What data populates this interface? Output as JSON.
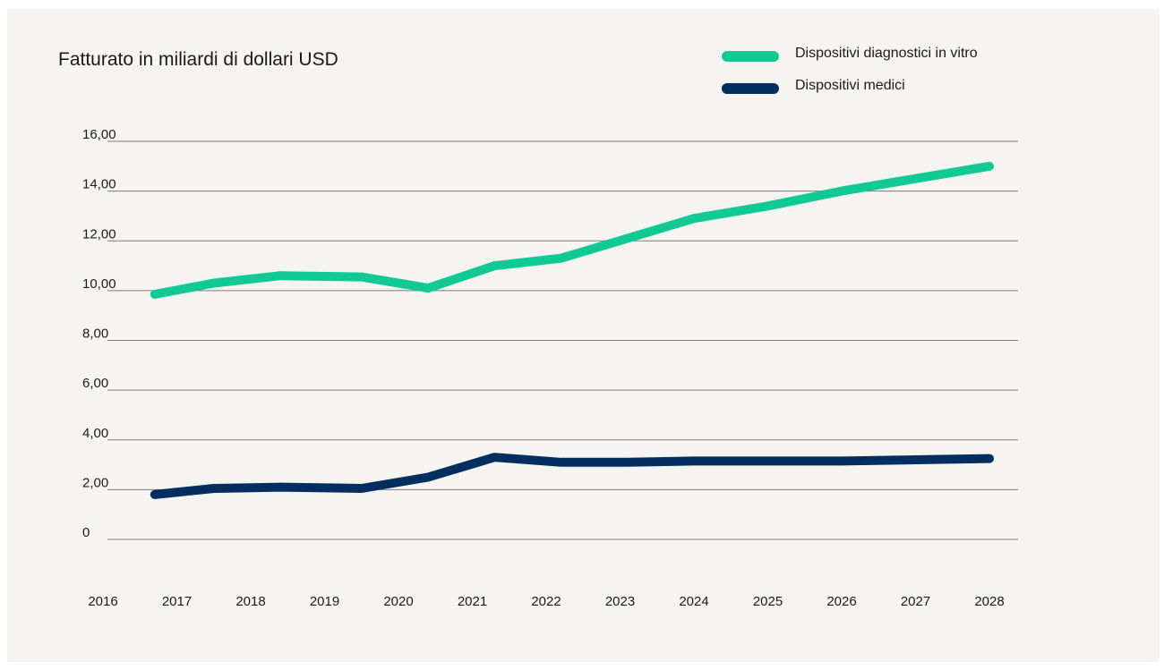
{
  "chart_data": {
    "type": "line",
    "title": "Fatturato in miliardi di dollari USD",
    "xlabel": "",
    "ylabel": "",
    "x_tick_labels": [
      "2016",
      "2017",
      "2018",
      "2019",
      "2020",
      "2021",
      "2022",
      "2023",
      "2024",
      "2025",
      "2026",
      "2027",
      "2028"
    ],
    "y_tick_labels": [
      "0",
      "2,00",
      "4,00",
      "6,00",
      "8,00",
      "10,00",
      "12,00",
      "14,00",
      "16,00"
    ],
    "y_ticks": [
      0,
      2,
      4,
      6,
      8,
      10,
      12,
      14,
      16
    ],
    "ylim": [
      0,
      16
    ],
    "xlim": [
      2016,
      2028
    ],
    "grid": true,
    "legend_position": "top-right",
    "series": [
      {
        "name": "Dispositivi diagnostici in vitro",
        "color": "#10c994",
        "x": [
          2016.7,
          2017.5,
          2018.4,
          2019.5,
          2020.4,
          2021.3,
          2022.2,
          2023.1,
          2024.0,
          2025.0,
          2026.0,
          2027.0,
          2028.0
        ],
        "values": [
          9.85,
          10.3,
          10.6,
          10.55,
          10.1,
          11.0,
          11.3,
          12.1,
          12.9,
          13.4,
          14.0,
          14.5,
          15.0
        ]
      },
      {
        "name": "Dispositivi medici",
        "color": "#002f5f",
        "x": [
          2016.7,
          2017.5,
          2018.4,
          2019.5,
          2020.4,
          2021.3,
          2022.2,
          2023.1,
          2024.0,
          2025.0,
          2026.0,
          2027.0,
          2028.0
        ],
        "values": [
          1.8,
          2.05,
          2.1,
          2.05,
          2.5,
          3.3,
          3.1,
          3.1,
          3.15,
          3.15,
          3.15,
          3.2,
          3.25
        ]
      }
    ]
  }
}
